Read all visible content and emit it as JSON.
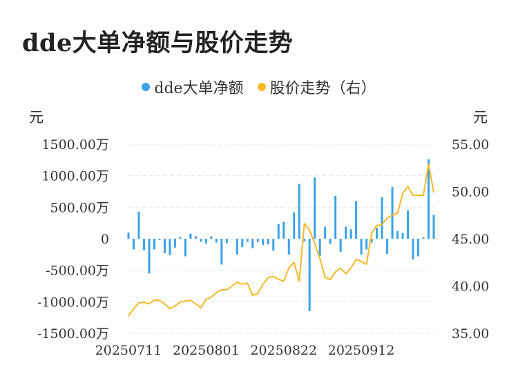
{
  "title": "dde大单净额与股价走势",
  "legend": {
    "left_label": "dde大单净额",
    "right_label": "股价走势（右）"
  },
  "colors": {
    "bar": "#3ba1e8",
    "line": "#f6b822",
    "grid": "#e6e6e6"
  },
  "chart_data": {
    "type": "bar+line",
    "left_axis_unit": "元",
    "right_axis_unit": "元",
    "left_ticks": [
      "1500.00万",
      "1000.00万",
      "500.00万",
      "0",
      "-500.00万",
      "-1000.00万",
      "-1500.00万"
    ],
    "right_ticks": [
      "55.00",
      "50.00",
      "45.00",
      "40.00",
      "35.00"
    ],
    "ylim_left": [
      -1500,
      1500
    ],
    "ylim_right": [
      35,
      55
    ],
    "x_tick_labels": [
      {
        "label": "20250711",
        "index": 0
      },
      {
        "label": "20250801",
        "index": 15
      },
      {
        "label": "20250822",
        "index": 30
      },
      {
        "label": "20250912",
        "index": 45
      }
    ],
    "series": [
      {
        "name": "dde大单净额",
        "axis": "left",
        "type": "bar",
        "values": [
          100,
          -170,
          430,
          -180,
          -550,
          -170,
          -20,
          -230,
          -260,
          -140,
          30,
          -280,
          80,
          40,
          -50,
          -80,
          40,
          -60,
          -410,
          -70,
          0,
          -250,
          -130,
          -50,
          -150,
          -50,
          -100,
          -90,
          -190,
          230,
          270,
          -250,
          420,
          870,
          -40,
          -1150,
          970,
          -270,
          190,
          -80,
          680,
          -210,
          190,
          150,
          600,
          -250,
          -170,
          -60,
          170,
          660,
          -240,
          820,
          120,
          90,
          450,
          -330,
          -280,
          20,
          1260,
          380
        ],
        "unit": "万"
      },
      {
        "name": "股价走势（右）",
        "axis": "right",
        "type": "line",
        "values": [
          36.8,
          37.6,
          38.2,
          38.3,
          38.1,
          38.5,
          38.5,
          38.1,
          37.6,
          37.9,
          38.3,
          38.4,
          38.5,
          38.1,
          37.7,
          38.6,
          38.8,
          39.3,
          39.6,
          39.6,
          40.0,
          40.4,
          40.2,
          40.3,
          39.0,
          39.2,
          40.2,
          40.9,
          41.0,
          40.7,
          40.5,
          41.9,
          42.5,
          40.5,
          46.6,
          45.9,
          44.5,
          42.9,
          40.9,
          40.7,
          41.5,
          41.9,
          41.3,
          41.9,
          42.8,
          42.6,
          42.3,
          45.6,
          46.4,
          46.5,
          47.2,
          47.5,
          47.7,
          49.8,
          50.5,
          49.6,
          49.6,
          49.6,
          52.9,
          49.9
        ]
      }
    ]
  }
}
